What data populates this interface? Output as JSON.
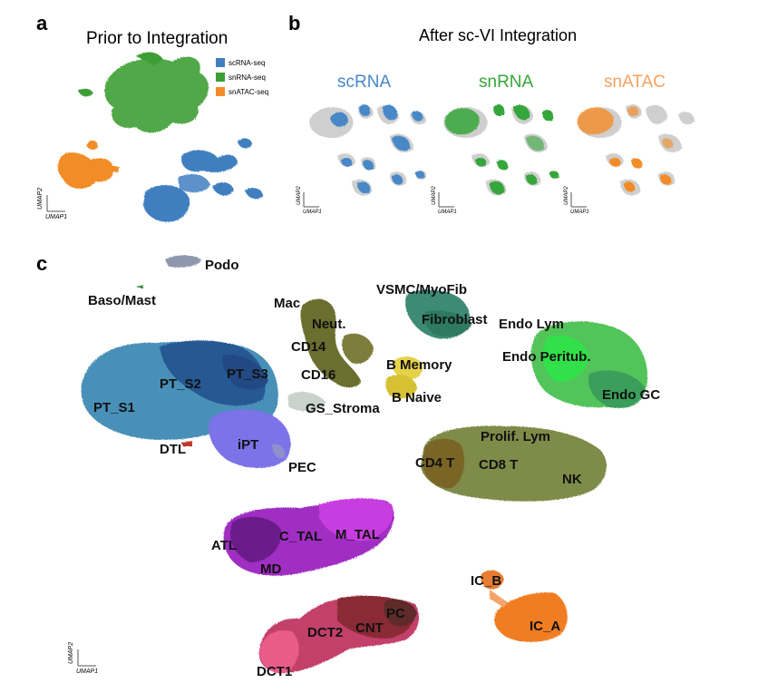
{
  "panels": {
    "a": {
      "letter": "a",
      "title": "Prior to Integration",
      "axis_x": "UMAP1",
      "axis_y": "UMAP2",
      "legend": [
        {
          "label": "scRNA-seq",
          "color": "#3f7fbf"
        },
        {
          "label": "snRNA-seq",
          "color": "#3e9e35"
        },
        {
          "label": "snATAC-seq",
          "color": "#f28c28"
        }
      ]
    },
    "b": {
      "letter": "b",
      "title": "After sc-VI Integration",
      "axis_x": "UMAP1",
      "axis_y": "UMAP2",
      "subplots": [
        {
          "label": "scRNA",
          "color": "#4a88c7"
        },
        {
          "label": "snRNA",
          "color": "#36a63a"
        },
        {
          "label": "snATAC",
          "color": "#f4a261"
        }
      ]
    },
    "c": {
      "letter": "c",
      "axis_x": "UMAP1",
      "axis_y": "UMAP2",
      "clusters": [
        {
          "label": "Podo"
        },
        {
          "label": "Baso/Mast"
        },
        {
          "label": "Mac"
        },
        {
          "label": "Neut."
        },
        {
          "label": "CD14"
        },
        {
          "label": "CD16"
        },
        {
          "label": "VSMC/MyoFib"
        },
        {
          "label": "Fibroblast"
        },
        {
          "label": "Endo Lym"
        },
        {
          "label": "Endo Peritub."
        },
        {
          "label": "Endo GC"
        },
        {
          "label": "B Memory"
        },
        {
          "label": "B Naive"
        },
        {
          "label": "GS_Stroma"
        },
        {
          "label": "PT_S1"
        },
        {
          "label": "PT_S2"
        },
        {
          "label": "PT_S3"
        },
        {
          "label": "DTL"
        },
        {
          "label": "iPT"
        },
        {
          "label": "PEC"
        },
        {
          "label": "Prolif. Lym"
        },
        {
          "label": "CD4 T"
        },
        {
          "label": "CD8 T"
        },
        {
          "label": "NK"
        },
        {
          "label": "ATL"
        },
        {
          "label": "C_TAL"
        },
        {
          "label": "M_TAL"
        },
        {
          "label": "MD"
        },
        {
          "label": "IC_B"
        },
        {
          "label": "IC_A"
        },
        {
          "label": "PC"
        },
        {
          "label": "CNT"
        },
        {
          "label": "DCT2"
        },
        {
          "label": "DCT1"
        }
      ]
    }
  }
}
